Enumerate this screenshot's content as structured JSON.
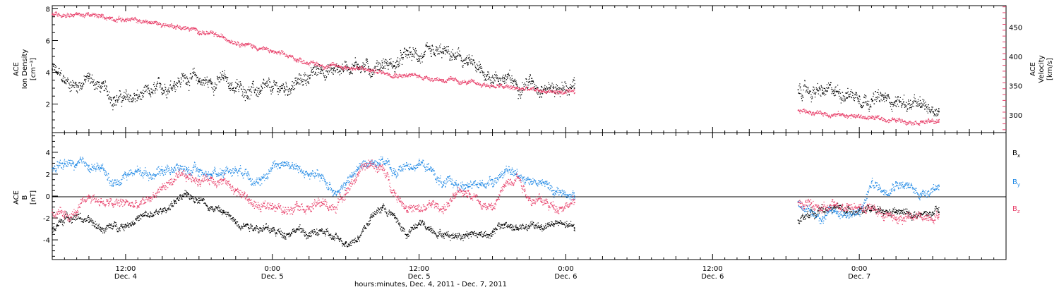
{
  "chart_data": {
    "type": "scatter",
    "x_axis": {
      "label": "hours:minutes, Dec.  4, 2011 - Dec.  7, 2011",
      "range_hours": [
        -18,
        60
      ],
      "ticks": [
        {
          "hour": -12,
          "time": "12:00",
          "date": "Dec. 4"
        },
        {
          "hour": 0,
          "time": "0:00",
          "date": "Dec. 5"
        },
        {
          "hour": 12,
          "time": "12:00",
          "date": "Dec. 5"
        },
        {
          "hour": 24,
          "time": "0:00",
          "date": "Dec. 6"
        },
        {
          "hour": 36,
          "time": "12:00",
          "date": "Dec. 6"
        },
        {
          "hour": 48,
          "time": "0:00",
          "date": "Dec. 7"
        }
      ]
    },
    "panels": [
      {
        "id": "density-velocity",
        "left_axis": {
          "title_lines": [
            "ACE",
            "Ion Density",
            "[cm⁻³]"
          ],
          "ylim": [
            0.2,
            8.2
          ],
          "ticks": [
            2,
            4,
            6,
            8
          ],
          "color": "#000000"
        },
        "right_axis": {
          "title_lines": [
            "ACE",
            "Velocity",
            "[km/s]"
          ],
          "ylim": [
            270,
            487
          ],
          "ticks": [
            300,
            350,
            400,
            450
          ],
          "color": "#e8416b"
        },
        "series": [
          {
            "axis": "left",
            "color": "#000000",
            "segments": [
              {
                "x": [
                  -18,
                  -17,
                  -16,
                  -15,
                  -14,
                  -13,
                  -12,
                  -11,
                  -10,
                  -9,
                  -8,
                  -7,
                  -6,
                  -5,
                  -4,
                  -3,
                  -2,
                  -1,
                  0,
                  1,
                  2,
                  3,
                  4,
                  5,
                  6,
                  7,
                  8,
                  9,
                  10,
                  11,
                  12,
                  13,
                  14,
                  15,
                  16,
                  17,
                  18,
                  19,
                  20,
                  21,
                  22,
                  23,
                  24.7
                ],
                "y": [
                  4.2,
                  3.4,
                  3.2,
                  3.6,
                  3.0,
                  2.4,
                  2.3,
                  2.4,
                  2.6,
                  3.0,
                  3.4,
                  3.7,
                  3.5,
                  3.3,
                  3.6,
                  3.0,
                  2.9,
                  2.8,
                  2.9,
                  3.0,
                  3.3,
                  3.8,
                  4.2,
                  4.1,
                  4.4,
                  4.5,
                  4.2,
                  4.6,
                  4.4,
                  5.1,
                  5.0,
                  5.0,
                  5.2,
                  4.9,
                  4.6,
                  4.0,
                  3.7,
                  3.6,
                  3.2,
                  3.4,
                  3.1,
                  3.0,
                  3.0
                ]
              },
              {
                "x": [
                  43,
                  44,
                  45,
                  46,
                  47,
                  48,
                  49,
                  50,
                  51,
                  52,
                  53,
                  54.5
                ],
                "y": [
                  2.9,
                  2.8,
                  2.7,
                  2.8,
                  2.7,
                  2.5,
                  2.3,
                  2.3,
                  2.2,
                  2.0,
                  1.8,
                  1.7
                ]
              }
            ]
          },
          {
            "axis": "right",
            "color": "#e8416b",
            "segments": [
              {
                "x": [
                  -18,
                  -16,
                  -14,
                  -12,
                  -10,
                  -8,
                  -6,
                  -4,
                  -2,
                  0,
                  2,
                  4,
                  6,
                  8,
                  10,
                  12,
                  14,
                  16,
                  18,
                  20,
                  22,
                  24.7
                ],
                "y": [
                  472,
                  472,
                  468,
                  463,
                  458,
                  452,
                  443,
                  432,
                  420,
                  408,
                  395,
                  385,
                  382,
                  376,
                  370,
                  366,
                  360,
                  355,
                  350,
                  345,
                  341,
                  337
                ]
              },
              {
                "x": [
                  43,
                  45,
                  47,
                  49,
                  51,
                  53,
                  54.5
                ],
                "y": [
                  308,
                  303,
                  299,
                  295,
                  291,
                  289,
                  288
                ]
              }
            ]
          }
        ]
      },
      {
        "id": "magnetic-field",
        "left_axis": {
          "title_lines": [
            "ACE",
            "B",
            "[nT]"
          ],
          "ylim": [
            -5.8,
            5.8
          ],
          "ticks": [
            -4,
            -2,
            0,
            2,
            4
          ],
          "color": "#000000"
        },
        "zero_line": true,
        "legend": [
          {
            "label": "B",
            "sub": "x",
            "color": "#000000"
          },
          {
            "label": "B",
            "sub": "y",
            "color": "#1e88e5"
          },
          {
            "label": "B",
            "sub": "z",
            "color": "#e8416b"
          }
        ],
        "series": [
          {
            "name": "Bx",
            "color": "#000000",
            "segments": [
              {
                "x": [
                  -18,
                  -17,
                  -16,
                  -15,
                  -14,
                  -13,
                  -12,
                  -11,
                  -10,
                  -9,
                  -8,
                  -7,
                  -6,
                  -5,
                  -4,
                  -3,
                  -2,
                  -1,
                  0,
                  1,
                  2,
                  3,
                  4,
                  5,
                  6,
                  7,
                  8,
                  9,
                  10,
                  11,
                  12,
                  13,
                  14,
                  15,
                  16,
                  17,
                  18,
                  19,
                  20,
                  21,
                  22,
                  23,
                  24.7
                ],
                "y": [
                  -3.0,
                  -2.0,
                  -1.8,
                  -2.4,
                  -3.0,
                  -2.8,
                  -2.6,
                  -2.0,
                  -1.8,
                  -1.4,
                  -0.5,
                  0.0,
                  -0.2,
                  -1.0,
                  -1.5,
                  -2.4,
                  -2.6,
                  -2.9,
                  -3.2,
                  -3.4,
                  -3.0,
                  -3.6,
                  -3.2,
                  -3.9,
                  -4.2,
                  -3.8,
                  -2.0,
                  -1.0,
                  -2.0,
                  -3.6,
                  -2.5,
                  -3.0,
                  -3.5,
                  -3.6,
                  -3.4,
                  -3.5,
                  -3.3,
                  -2.6,
                  -3.0,
                  -2.8,
                  -2.8,
                  -2.5,
                  -2.9
                ]
              },
              {
                "x": [
                  43,
                  44,
                  45,
                  46,
                  47,
                  48,
                  49,
                  50,
                  51,
                  52,
                  53,
                  54.5
                ],
                "y": [
                  -2.2,
                  -1.5,
                  -1.3,
                  -1.0,
                  -1.4,
                  -1.2,
                  -1.3,
                  -1.6,
                  -1.5,
                  -1.6,
                  -1.8,
                  -1.5
                ]
              }
            ]
          },
          {
            "name": "By",
            "color": "#1e88e5",
            "segments": [
              {
                "x": [
                  -18,
                  -17,
                  -16,
                  -15,
                  -14,
                  -13,
                  -12,
                  -11,
                  -10,
                  -9,
                  -8,
                  -7,
                  -6,
                  -5,
                  -4,
                  -3,
                  -2,
                  -1,
                  0,
                  1,
                  2,
                  3,
                  4,
                  5,
                  6,
                  7,
                  8,
                  9,
                  10,
                  11,
                  12,
                  13,
                  14,
                  15,
                  16,
                  17,
                  18,
                  19,
                  20,
                  21,
                  22,
                  23,
                  24.7
                ],
                "y": [
                  2.5,
                  3.0,
                  2.8,
                  2.8,
                  2.5,
                  1.0,
                  2.0,
                  2.3,
                  2.0,
                  2.4,
                  2.6,
                  2.4,
                  2.2,
                  2.0,
                  2.3,
                  2.5,
                  2.2,
                  1.0,
                  2.8,
                  3.1,
                  2.5,
                  2.0,
                  1.6,
                  0.5,
                  1.0,
                  2.6,
                  3.0,
                  3.4,
                  2.0,
                  2.8,
                  3.0,
                  2.3,
                  1.0,
                  1.2,
                  0.8,
                  1.0,
                  1.5,
                  2.2,
                  2.0,
                  1.5,
                  1.2,
                  0.5,
                  0.0
                ]
              },
              {
                "x": [
                  43,
                  44,
                  45,
                  46,
                  47,
                  48,
                  49,
                  50,
                  51,
                  52,
                  53,
                  54.5
                ],
                "y": [
                  -0.5,
                  -1.5,
                  -1.9,
                  -1.4,
                  -1.6,
                  -1.7,
                  1.2,
                  0.5,
                  1.3,
                  0.8,
                  0.2,
                  1.0
                ]
              }
            ]
          },
          {
            "name": "Bz",
            "color": "#e8416b",
            "segments": [
              {
                "x": [
                  -18,
                  -17,
                  -16,
                  -15,
                  -14,
                  -13,
                  -12,
                  -11,
                  -10,
                  -9,
                  -8,
                  -7,
                  -6,
                  -5,
                  -4,
                  -3,
                  -2,
                  -1,
                  0,
                  1,
                  2,
                  3,
                  4,
                  5,
                  6,
                  7,
                  8,
                  9,
                  10,
                  11,
                  12,
                  13,
                  14,
                  15,
                  16,
                  17,
                  18,
                  19,
                  20,
                  21,
                  22,
                  23,
                  24.7
                ],
                "y": [
                  -1.5,
                  -2.0,
                  -1.5,
                  0.0,
                  -0.5,
                  -0.8,
                  -0.6,
                  -1.0,
                  -0.2,
                  0.8,
                  1.5,
                  1.7,
                  1.5,
                  1.6,
                  1.4,
                  0.5,
                  -0.3,
                  -1.2,
                  -0.7,
                  -1.5,
                  -0.5,
                  -1.1,
                  -0.6,
                  -1.2,
                  0.5,
                  2.0,
                  3.0,
                  2.4,
                  0.3,
                  -1.0,
                  -1.4,
                  -0.8,
                  -1.1,
                  0.0,
                  0.5,
                  -0.5,
                  -1.2,
                  1.0,
                  2.0,
                  -0.2,
                  -0.5,
                  -1.0,
                  -0.6
                ]
              },
              {
                "x": [
                  43,
                  44,
                  45,
                  46,
                  47,
                  48,
                  49,
                  50,
                  51,
                  52,
                  53,
                  54.5
                ],
                "y": [
                  -0.6,
                  -0.8,
                  -1.3,
                  -0.9,
                  -0.7,
                  -1.0,
                  -1.1,
                  -1.7,
                  -2.1,
                  -2.0,
                  -1.9,
                  -1.7
                ]
              }
            ]
          }
        ]
      }
    ]
  }
}
